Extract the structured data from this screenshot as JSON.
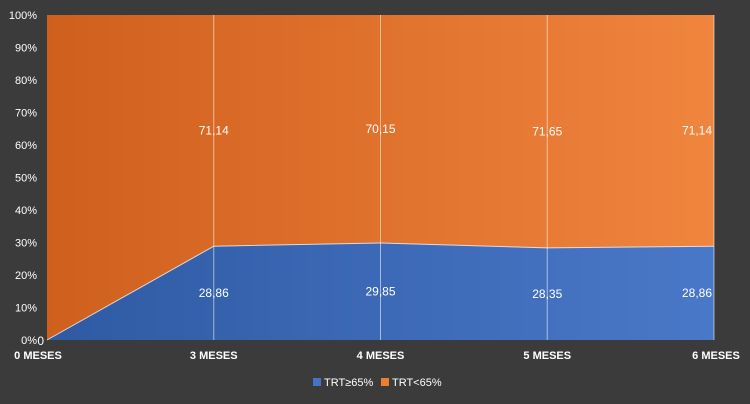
{
  "chart_data": {
    "type": "area",
    "stacked": "percent",
    "categories": [
      "0 MESES",
      "3 MESES",
      "4 MESES",
      "5 MESES",
      "6 MESES"
    ],
    "series": [
      {
        "name": "TRT≥65%",
        "values": [
          0,
          28.86,
          29.85,
          28.35,
          28.86
        ],
        "labels": [
          "0",
          "28,86",
          "29,85",
          "28,35",
          "28,86"
        ],
        "color": "#4472c4"
      },
      {
        "name": "TRT<65%",
        "values": [
          100,
          71.14,
          70.15,
          71.65,
          71.14
        ],
        "labels": [
          "",
          "71,14",
          "70,15",
          "71,65",
          "71,14"
        ],
        "color": "#ed7d31"
      }
    ],
    "y_ticks": [
      "0%",
      "10%",
      "20%",
      "30%",
      "40%",
      "50%",
      "60%",
      "70%",
      "80%",
      "90%",
      "100%"
    ],
    "ylim": [
      0,
      100
    ],
    "legend_position": "bottom",
    "grid": "vertical",
    "background": "#3b3b3b"
  }
}
